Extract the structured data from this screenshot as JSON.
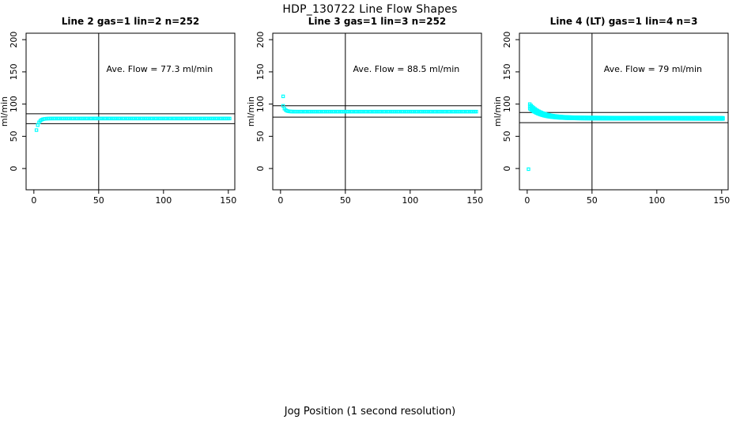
{
  "figure": {
    "title": "HDP_130722  Line Flow Shapes",
    "xlabel": "Jog Position (1 second resolution)",
    "ylabel": "ml/min",
    "background": "#FFFFFF",
    "point_color": "#00FFFF",
    "axis_color": "#000000"
  },
  "chart_data": {
    "type": "scatter",
    "title": "HDP_130722  Line Flow Shapes",
    "xlabel": "Jog Position (1 second resolution)",
    "ylabel": "ml/min",
    "legend": "none",
    "grid": false,
    "panels": [
      {
        "title": "Line 2 gas=1 lin=2 n=252",
        "annotation": "Ave. Flow =  77.3  ml/min",
        "ave_flow_ml_min": 77.3,
        "n": 252,
        "xlim": [
          -6,
          155
        ],
        "ylim": [
          -33,
          210
        ],
        "xticks": [
          0,
          50,
          100,
          150
        ],
        "yticks": [
          0,
          50,
          100,
          150,
          200
        ],
        "hlines": [
          85.0,
          69.6
        ],
        "vline": 50,
        "annotation_pos": {
          "x": 97,
          "y": 150
        },
        "series_model": {
          "shape": "exp",
          "x_start": 2,
          "x_end": 151,
          "step": 1,
          "plateau": 77.6,
          "amp": -18,
          "tau": 1.8,
          "slope": 0,
          "n_runs": 1,
          "spread": 0
        },
        "outliers": []
      },
      {
        "title": "Line 3 gas=1 lin=3 n=252",
        "annotation": "Ave. Flow =  88.5  ml/min",
        "ave_flow_ml_min": 88.5,
        "n": 252,
        "xlim": [
          -6,
          155
        ],
        "ylim": [
          -33,
          210
        ],
        "xticks": [
          0,
          50,
          100,
          150
        ],
        "yticks": [
          0,
          50,
          100,
          150,
          200
        ],
        "hlines": [
          97.4,
          79.7
        ],
        "vline": 50,
        "annotation_pos": {
          "x": 97,
          "y": 150
        },
        "series_model": {
          "shape": "exp",
          "x_start": 2,
          "x_end": 151,
          "step": 1,
          "plateau": 88.3,
          "amp": 9,
          "tau": 1.5,
          "slope": 0,
          "n_runs": 1,
          "spread": 0
        },
        "outliers": [
          [
            2,
            112
          ]
        ]
      },
      {
        "title": "Line 4 (LT) gas=1 lin=4 n=3",
        "annotation": "Ave. Flow =  79  ml/min",
        "ave_flow_ml_min": 79,
        "n": 3,
        "xlim": [
          -6,
          155
        ],
        "ylim": [
          -33,
          210
        ],
        "xticks": [
          0,
          50,
          100,
          150
        ],
        "yticks": [
          0,
          50,
          100,
          150,
          200
        ],
        "hlines": [
          86.9,
          71.1
        ],
        "vline": 50,
        "annotation_pos": {
          "x": 97,
          "y": 150
        },
        "series_model": {
          "shape": "exp",
          "x_start": 2,
          "x_end": 151,
          "step": 1,
          "plateau": 78.4,
          "amp": 18,
          "tau": 9,
          "slope": -0.004,
          "n_runs": 3,
          "spread": 0.9
        },
        "outliers": [
          [
            1,
            -1
          ]
        ]
      }
    ]
  }
}
